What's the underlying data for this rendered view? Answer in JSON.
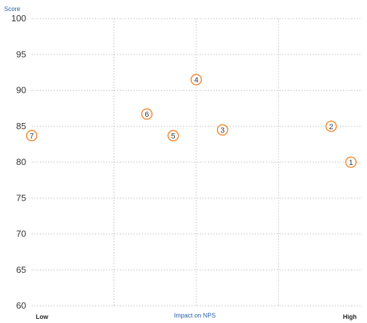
{
  "chart_data": {
    "type": "scatter",
    "ylabel": "Score",
    "xlabel": "Impact on NPS",
    "x_low_label": "Low",
    "x_high_label": "High",
    "ylim": [
      60,
      100
    ],
    "yticks": [
      100,
      95,
      90,
      85,
      80,
      75,
      70,
      65,
      60
    ],
    "xlim": [
      0,
      10
    ],
    "grid": true,
    "quadrant_lines": {
      "x": 5,
      "y": 85
    },
    "points": [
      {
        "label": "1",
        "x": 9.7,
        "y": 80.0
      },
      {
        "label": "2",
        "x": 9.1,
        "y": 85.0
      },
      {
        "label": "3",
        "x": 5.8,
        "y": 84.5
      },
      {
        "label": "4",
        "x": 5.0,
        "y": 91.5
      },
      {
        "label": "5",
        "x": 4.3,
        "y": 83.7
      },
      {
        "label": "6",
        "x": 3.5,
        "y": 86.7
      },
      {
        "label": "7",
        "x": 0.0,
        "y": 83.7
      }
    ],
    "colors": {
      "marker": "#f28c38",
      "grid": "#bbbbbb",
      "axis_label": "#1f5fa8"
    }
  }
}
